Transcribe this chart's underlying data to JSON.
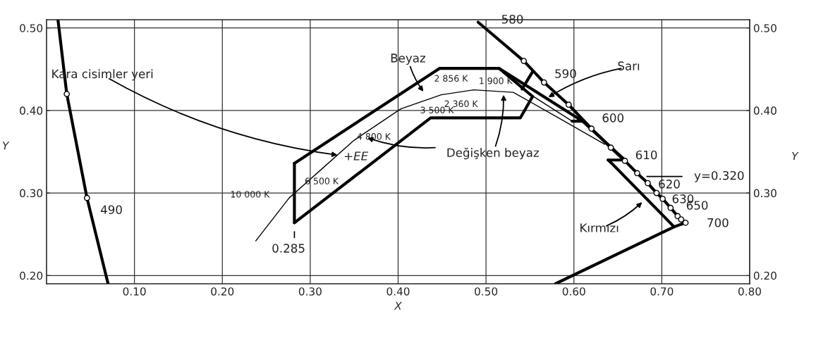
{
  "chart_data": {
    "type": "line",
    "xlabel": "X",
    "ylabel": "Y",
    "y2label": "Y",
    "xlim": [
      0.0,
      0.8
    ],
    "ylim": [
      0.19,
      0.51
    ],
    "y2lim": [
      0.19,
      0.51
    ],
    "xticks": [
      {
        "value": 0.1,
        "label": "0.10"
      },
      {
        "value": 0.2,
        "label": "0.20"
      },
      {
        "value": 0.3,
        "label": "0.30"
      },
      {
        "value": 0.4,
        "label": "0.40"
      },
      {
        "value": 0.5,
        "label": "0.50"
      },
      {
        "value": 0.6,
        "label": "0.60"
      },
      {
        "value": 0.7,
        "label": "0.70"
      },
      {
        "value": 0.8,
        "label": "0.80"
      }
    ],
    "yticks": [
      {
        "value": 0.2,
        "label": "0.20"
      },
      {
        "value": 0.3,
        "label": "0.30"
      },
      {
        "value": 0.4,
        "label": "0.40"
      },
      {
        "value": 0.5,
        "label": "0.50"
      }
    ],
    "y2ticks": [
      {
        "value": 0.2,
        "label": "0.20"
      },
      {
        "value": 0.3,
        "label": "0.30"
      },
      {
        "value": 0.4,
        "label": "0.40"
      },
      {
        "value": 0.5,
        "label": "0.50"
      }
    ],
    "grid": true,
    "series": [
      {
        "color": "#000000",
        "x": [
          0.013,
          0.023,
          0.046,
          0.07
        ],
        "values": [
          0.51,
          0.42,
          0.294,
          0.19
        ]
      },
      {
        "color": "#000000",
        "x": [
          0.491,
          0.543,
          0.566,
          0.594,
          0.62,
          0.642,
          0.658,
          0.672,
          0.684,
          0.694,
          0.701,
          0.71,
          0.718,
          0.722,
          0.727
        ],
        "values": [
          0.507,
          0.46,
          0.434,
          0.407,
          0.378,
          0.355,
          0.339,
          0.324,
          0.312,
          0.3,
          0.293,
          0.282,
          0.272,
          0.268,
          0.264
        ]
      },
      {
        "type": "scatter",
        "color": "#000000",
        "marker": "circle",
        "x": [
          0.023,
          0.046,
          0.543,
          0.566,
          0.594,
          0.62,
          0.642,
          0.658,
          0.672,
          0.684,
          0.694,
          0.701,
          0.71,
          0.718,
          0.722,
          0.727
        ],
        "values": [
          0.42,
          0.294,
          0.46,
          0.434,
          0.407,
          0.378,
          0.355,
          0.339,
          0.324,
          0.312,
          0.3,
          0.293,
          0.282,
          0.272,
          0.268,
          0.264
        ]
      },
      {
        "color": "#000000",
        "x": [
          0.238,
          0.276,
          0.313,
          0.35,
          0.403,
          0.449,
          0.486,
          0.531,
          0.586,
          0.635
        ],
        "values": [
          0.242,
          0.294,
          0.329,
          0.364,
          0.402,
          0.419,
          0.425,
          0.422,
          0.389,
          0.359
        ]
      },
      {
        "color": "#000000",
        "x": [
          0.282,
          0.447,
          0.515,
          0.553
        ],
        "values": [
          0.336,
          0.451,
          0.451,
          0.417
        ]
      },
      {
        "color": "#000000",
        "x": [
          0.282,
          0.437,
          0.539,
          0.553
        ],
        "values": [
          0.264,
          0.391,
          0.391,
          0.417
        ]
      },
      {
        "color": "#000000",
        "x": [
          0.282,
          0.282
        ],
        "values": [
          0.264,
          0.336
        ]
      },
      {
        "color": "#000000",
        "x": [
          0.541,
          0.553
        ],
        "values": [
          0.426,
          0.447
        ]
      },
      {
        "color": "#000000",
        "x": [
          0.515,
          0.61,
          0.658
        ],
        "values": [
          0.451,
          0.387,
          0.34
        ]
      },
      {
        "color": "#000000",
        "x": [
          0.598,
          0.61
        ],
        "values": [
          0.387,
          0.387
        ]
      },
      {
        "color": "#000000",
        "x": [
          0.548,
          0.598
        ],
        "values": [
          0.421,
          0.387
        ]
      },
      {
        "color": "#000000",
        "x": [
          0.579,
          0.714,
          0.727
        ],
        "values": [
          0.19,
          0.259,
          0.264
        ]
      },
      {
        "color": "#000000",
        "x": [
          0.639,
          0.643,
          0.714
        ],
        "values": [
          0.34,
          0.336,
          0.259
        ]
      },
      {
        "color": "#000000",
        "x": [
          0.639,
          0.658
        ],
        "values": [
          0.34,
          0.34
        ]
      },
      {
        "color": "#000000",
        "x": [
          0.683,
          0.723
        ],
        "values": [
          0.32,
          0.32
        ]
      },
      {
        "color": "#000000",
        "x": [
          0.282,
          0.282
        ],
        "values": [
          0.253,
          0.246
        ]
      }
    ],
    "annotations": [
      {
        "text": "490",
        "x": 0.046,
        "y": 0.294
      },
      {
        "text": "580",
        "x": 0.491,
        "y": 0.507
      },
      {
        "text": "590",
        "x": 0.566,
        "y": 0.434
      },
      {
        "text": "600",
        "x": 0.62,
        "y": 0.378
      },
      {
        "text": "610",
        "x": 0.658,
        "y": 0.339
      },
      {
        "text": "620",
        "x": 0.684,
        "y": 0.312
      },
      {
        "text": "630",
        "x": 0.694,
        "y": 0.3
      },
      {
        "text": "650",
        "x": 0.718,
        "y": 0.272
      },
      {
        "text": "700",
        "x": 0.727,
        "y": 0.264
      },
      {
        "text": "y=0.320",
        "x": 0.723,
        "y": 0.32
      },
      {
        "text": "10 000 K",
        "x": 0.276,
        "y": 0.294
      },
      {
        "text": "6 500 K",
        "x": 0.313,
        "y": 0.329
      },
      {
        "text": "4 800 K",
        "x": 0.35,
        "y": 0.364
      },
      {
        "text": "3 500 K",
        "x": 0.403,
        "y": 0.402
      },
      {
        "text": "2 856 K",
        "x": 0.449,
        "y": 0.419
      },
      {
        "text": "2 360 K",
        "x": 0.486,
        "y": 0.425
      },
      {
        "text": "1 900 K",
        "x": 0.531,
        "y": 0.422
      },
      "+EE",
      {
        "text": "0.285",
        "x": 0.282,
        "y": 0.246
      },
      {
        "text": "Kara cisimler yeri",
        "x": 0.331,
        "y": 0.346
      },
      "Beyaz",
      {
        "text": "Değişken beyaz",
        "x": 0.52,
        "y": 0.419
      },
      {
        "text": "Sarı",
        "x": 0.571,
        "y": 0.416
      },
      "Kırmızı"
    ]
  }
}
